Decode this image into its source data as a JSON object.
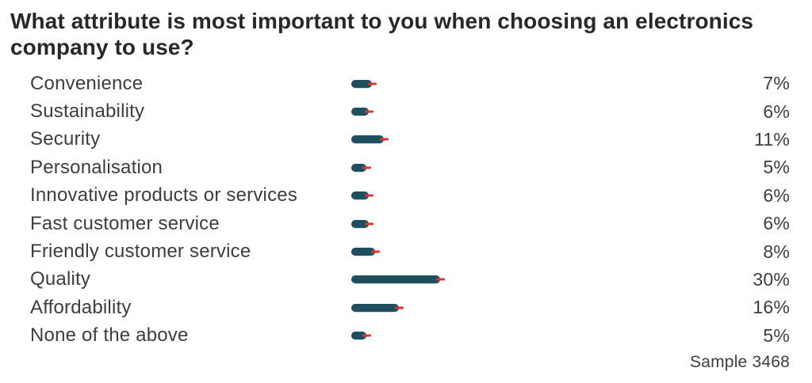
{
  "title": "What attribute is most important to you when choosing an electronics company to use?",
  "sample_label": "Sample 3468",
  "colors": {
    "bar": "#1f4e5f",
    "error_tick": "#e8302e",
    "title_text": "#282828",
    "body_text": "#3d3d3d",
    "background": "#ffffff"
  },
  "chart_data": {
    "type": "bar",
    "orientation": "horizontal",
    "title": "What attribute is most important to you when choosing an electronics company to use?",
    "categories": [
      "Convenience",
      "Sustainability",
      "Security",
      "Personalisation",
      "Innovative products or services",
      "Fast customer service",
      "Friendly customer service",
      "Quality",
      "Affordability",
      "None of the above"
    ],
    "values": [
      7,
      6,
      11,
      5,
      6,
      6,
      8,
      30,
      16,
      5
    ],
    "value_labels": [
      "7%",
      "6%",
      "11%",
      "5%",
      "6%",
      "6%",
      "8%",
      "30%",
      "16%",
      "5%"
    ],
    "unit": "%",
    "sample_size": 3468,
    "value_label_position": "right-aligned-column",
    "error_tick_at_bar_end": true,
    "grid": false,
    "legend": false,
    "axis_labels_visible": false
  }
}
